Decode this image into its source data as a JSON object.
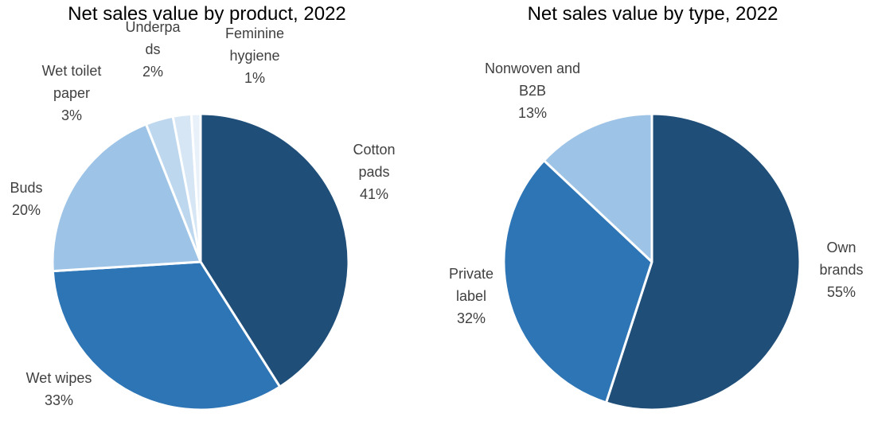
{
  "chart_data": [
    {
      "type": "pie",
      "title": "Net sales value by product, 2022",
      "slices": [
        {
          "label": [
            "Cotton",
            "pads"
          ],
          "value": 41,
          "pct": "41%",
          "color": "#1f4e79"
        },
        {
          "label": [
            "Wet wipes"
          ],
          "value": 33,
          "pct": "33%",
          "color": "#2e75b6"
        },
        {
          "label": [
            "Buds"
          ],
          "value": 20,
          "pct": "20%",
          "color": "#9dc3e6"
        },
        {
          "label": [
            "Wet toilet",
            "paper"
          ],
          "value": 3,
          "pct": "3%",
          "color": "#bdd7ee"
        },
        {
          "label": [
            "Underpa",
            "ds"
          ],
          "value": 2,
          "pct": "2%",
          "color": "#d6e6f5"
        },
        {
          "label": [
            "Feminine",
            "hygiene"
          ],
          "value": 1,
          "pct": "1%",
          "color": "#e8f1fa"
        }
      ],
      "legend": "none",
      "label_position": "outside"
    },
    {
      "type": "pie",
      "title": "Net sales value by type, 2022",
      "slices": [
        {
          "label": [
            "Own",
            "brands"
          ],
          "value": 55,
          "pct": "55%",
          "color": "#1f4e79"
        },
        {
          "label": [
            "Private",
            "label"
          ],
          "value": 32,
          "pct": "32%",
          "color": "#2e75b6"
        },
        {
          "label": [
            "Nonwoven and",
            "B2B"
          ],
          "value": 13,
          "pct": "13%",
          "color": "#9dc3e6"
        }
      ],
      "legend": "none",
      "label_position": "outside"
    }
  ]
}
